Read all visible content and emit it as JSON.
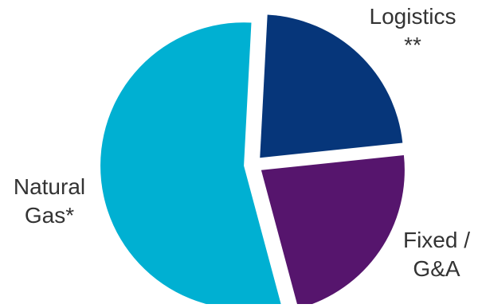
{
  "chart_data": {
    "type": "pie",
    "slices": [
      {
        "label_lines": [
          "Logistics",
          "**"
        ],
        "value": 22.5,
        "color": "#06367a"
      },
      {
        "label_lines": [
          "Fixed /",
          "G&A"
        ],
        "value": 22.5,
        "color": "#56156d"
      },
      {
        "label_lines": [
          "Natural",
          "Gas*"
        ],
        "value": 55.0,
        "color": "#00b0d2"
      }
    ],
    "start_angle_deg": 3,
    "exploded": true
  }
}
